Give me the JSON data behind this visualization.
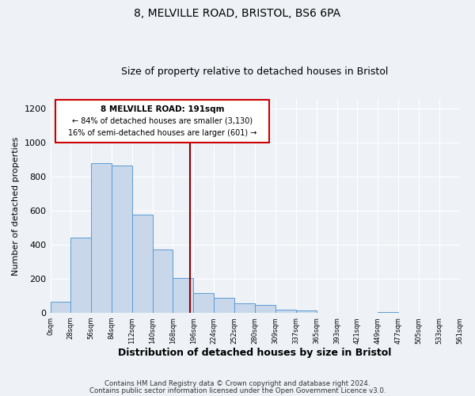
{
  "title": "8, MELVILLE ROAD, BRISTOL, BS6 6PA",
  "subtitle": "Size of property relative to detached houses in Bristol",
  "xlabel": "Distribution of detached houses by size in Bristol",
  "ylabel": "Number of detached properties",
  "bar_color": "#c8d8ea",
  "bar_edge_color": "#5b9bd5",
  "background_color": "#eef2f7",
  "grid_color": "#ffffff",
  "vline_x": 191,
  "vline_color": "#8b0000",
  "annotation_box_color": "#ffffff",
  "annotation_border_color": "#cc0000",
  "annotation_line1": "8 MELVILLE ROAD: 191sqm",
  "annotation_line2": "← 84% of detached houses are smaller (3,130)",
  "annotation_line3": "16% of semi-detached houses are larger (601) →",
  "bin_edges": [
    0,
    28,
    56,
    84,
    112,
    140,
    168,
    196,
    224,
    252,
    280,
    309,
    337,
    365,
    393,
    421,
    449,
    477,
    505,
    533,
    561
  ],
  "bin_counts": [
    65,
    445,
    880,
    865,
    580,
    375,
    205,
    115,
    90,
    55,
    45,
    20,
    15,
    0,
    0,
    0,
    5,
    0,
    0,
    0
  ],
  "ylim": [
    0,
    1260
  ],
  "yticks": [
    0,
    200,
    400,
    600,
    800,
    1000,
    1200
  ],
  "footer1": "Contains HM Land Registry data © Crown copyright and database right 2024.",
  "footer2": "Contains public sector information licensed under the Open Government Licence v3.0."
}
